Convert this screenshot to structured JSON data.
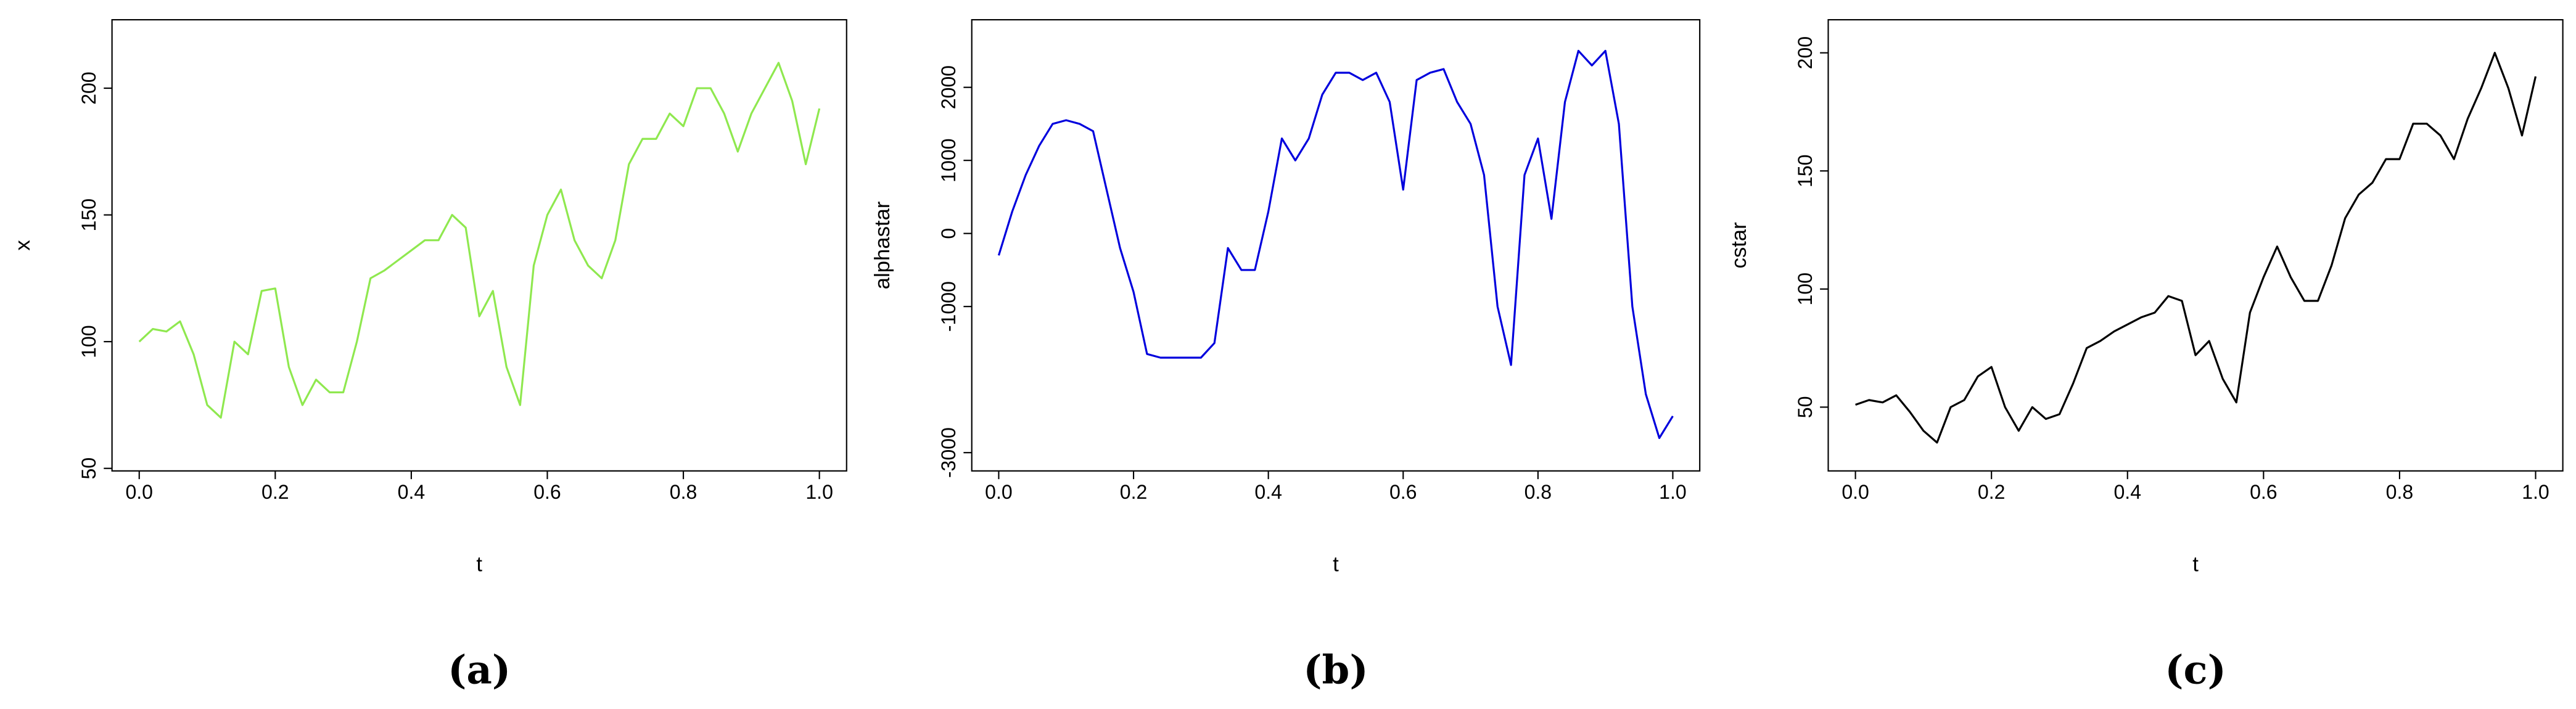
{
  "chart_data": [
    {
      "type": "line",
      "caption": "(a)",
      "xlabel": "t",
      "ylabel": "x",
      "x": [
        0,
        0.02,
        0.04,
        0.06,
        0.08,
        0.1,
        0.12,
        0.14,
        0.16,
        0.18,
        0.2,
        0.22,
        0.24,
        0.26,
        0.28,
        0.3,
        0.32,
        0.34,
        0.36,
        0.38,
        0.4,
        0.42,
        0.44,
        0.46,
        0.48,
        0.5,
        0.52,
        0.54,
        0.56,
        0.58,
        0.6,
        0.62,
        0.64,
        0.66,
        0.68,
        0.7,
        0.72,
        0.74,
        0.76,
        0.78,
        0.8,
        0.82,
        0.84,
        0.86,
        0.88,
        0.9,
        0.92,
        0.94,
        0.96,
        0.98,
        1
      ],
      "series": [
        {
          "name": "x",
          "color": "#8fe84f",
          "values": [
            100,
            105,
            104,
            108,
            95,
            75,
            70,
            100,
            95,
            120,
            121,
            90,
            75,
            85,
            80,
            80,
            100,
            125,
            128,
            132,
            136,
            140,
            140,
            150,
            145,
            110,
            120,
            90,
            75,
            130,
            150,
            160,
            140,
            130,
            125,
            140,
            170,
            180,
            180,
            190,
            185,
            200,
            200,
            190,
            175,
            190,
            200,
            210,
            195,
            170,
            192
          ]
        }
      ],
      "xlim": [
        -0.04,
        1.04
      ],
      "ylim": [
        49,
        227
      ],
      "xticks": [
        {
          "value": 0,
          "label": "0.0"
        },
        0.2,
        0.4,
        0.6,
        0.8,
        {
          "value": 1,
          "label": "1.0"
        }
      ],
      "yticks": [
        50,
        100,
        150,
        200
      ]
    },
    {
      "type": "line",
      "caption": "(b)",
      "xlabel": "t",
      "ylabel": "alphastar",
      "x": [
        0,
        0.02,
        0.04,
        0.06,
        0.08,
        0.1,
        0.12,
        0.14,
        0.16,
        0.18,
        0.2,
        0.22,
        0.24,
        0.26,
        0.28,
        0.3,
        0.32,
        0.34,
        0.36,
        0.38,
        0.4,
        0.42,
        0.44,
        0.46,
        0.48,
        0.5,
        0.52,
        0.54,
        0.56,
        0.58,
        0.6,
        0.62,
        0.64,
        0.66,
        0.68,
        0.7,
        0.72,
        0.74,
        0.76,
        0.78,
        0.8,
        0.82,
        0.84,
        0.86,
        0.88,
        0.9,
        0.92,
        0.94,
        0.96,
        0.98,
        1
      ],
      "series": [
        {
          "name": "alphastar",
          "color": "#0000dd",
          "values": [
            -300,
            300,
            800,
            1200,
            1500,
            1550,
            1500,
            1400,
            600,
            -200,
            -800,
            -1650,
            -1700,
            -1700,
            -1700,
            -1700,
            -1500,
            -200,
            -500,
            -500,
            300,
            1300,
            1000,
            1300,
            1900,
            2200,
            2200,
            2100,
            2200,
            1800,
            600,
            2100,
            2200,
            2250,
            1800,
            1500,
            800,
            -1000,
            -1800,
            800,
            1300,
            200,
            1800,
            2500,
            2300,
            2500,
            1500,
            -1000,
            -2200,
            -2800,
            -2500
          ]
        }
      ],
      "xlim": [
        -0.04,
        1.04
      ],
      "ylim": [
        -3250,
        2925
      ],
      "xticks": [
        {
          "value": 0,
          "label": "0.0"
        },
        0.2,
        0.4,
        0.6,
        0.8,
        {
          "value": 1,
          "label": "1.0"
        }
      ],
      "yticks": [
        -3000,
        -1000,
        0,
        1000,
        2000
      ]
    },
    {
      "type": "line",
      "caption": "(c)",
      "xlabel": "t",
      "ylabel": "cstar",
      "x": [
        0,
        0.02,
        0.04,
        0.06,
        0.08,
        0.1,
        0.12,
        0.14,
        0.16,
        0.18,
        0.2,
        0.22,
        0.24,
        0.26,
        0.28,
        0.3,
        0.32,
        0.34,
        0.36,
        0.38,
        0.4,
        0.42,
        0.44,
        0.46,
        0.48,
        0.5,
        0.52,
        0.54,
        0.56,
        0.58,
        0.6,
        0.62,
        0.64,
        0.66,
        0.68,
        0.7,
        0.72,
        0.74,
        0.76,
        0.78,
        0.8,
        0.82,
        0.84,
        0.86,
        0.88,
        0.9,
        0.92,
        0.94,
        0.96,
        0.98,
        1
      ],
      "series": [
        {
          "name": "cstar",
          "color": "#000000",
          "values": [
            51,
            53,
            52,
            55,
            48,
            40,
            35,
            50,
            53,
            63,
            67,
            50,
            40,
            50,
            45,
            47,
            60,
            75,
            78,
            82,
            85,
            88,
            90,
            97,
            95,
            72,
            78,
            62,
            52,
            90,
            105,
            118,
            105,
            95,
            95,
            110,
            130,
            140,
            145,
            155,
            155,
            170,
            170,
            165,
            155,
            172,
            185,
            200,
            185,
            165,
            190
          ]
        }
      ],
      "xlim": [
        -0.04,
        1.04
      ],
      "ylim": [
        23,
        214
      ],
      "xticks": [
        {
          "value": 0,
          "label": "0.0"
        },
        0.2,
        0.4,
        0.6,
        0.8,
        {
          "value": 1,
          "label": "1.0"
        }
      ],
      "yticks": [
        50,
        100,
        150,
        200
      ]
    }
  ]
}
